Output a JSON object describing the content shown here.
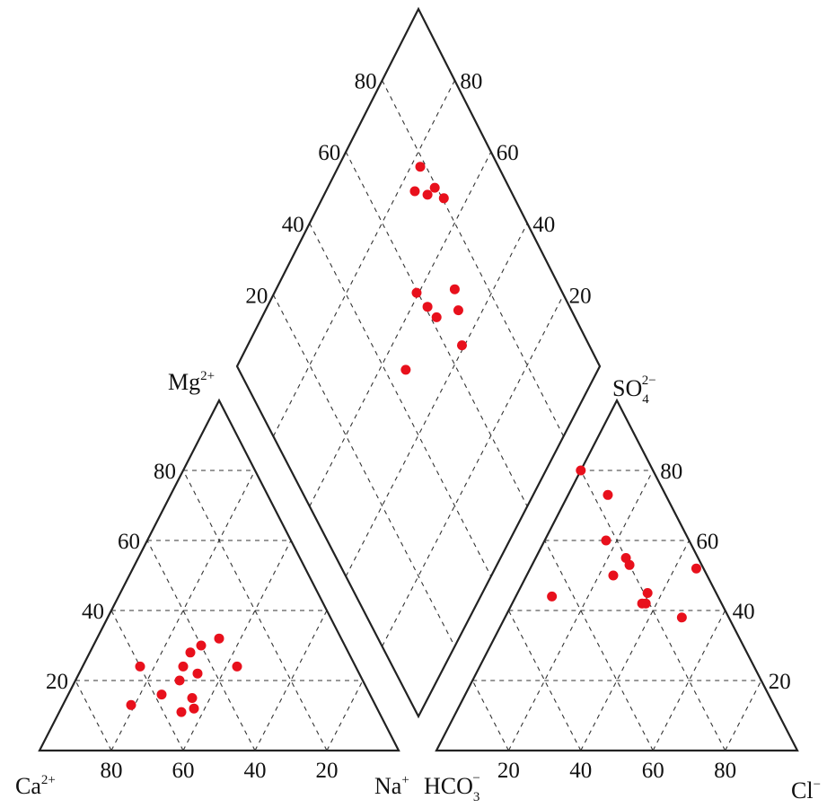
{
  "chart_data": {
    "type": "scatter",
    "subtype": "piper-trilinear-diagram",
    "title": "",
    "axis_labels": {
      "cation_ca": "Ca",
      "cation_ca_charge": "2+",
      "cation_mg": "Mg",
      "cation_mg_charge": "2+",
      "cation_na": "Na",
      "cation_na_charge": "+",
      "anion_hco3": "HCO",
      "anion_hco3_sub": "3",
      "anion_hco3_charge": "−",
      "anion_so4": "SO",
      "anion_so4_sub": "4",
      "anion_so4_charge": "2−",
      "anion_cl": "Cl",
      "anion_cl_charge": "−"
    },
    "ticks": {
      "values": [
        20,
        40,
        60,
        80
      ],
      "labels": [
        "20",
        "40",
        "60",
        "80"
      ]
    },
    "grid": true,
    "marker_color": "#e8101c",
    "line_color": "#222222",
    "cation_samples_pct": [
      {
        "ca": 33,
        "mg": 24,
        "na": 43
      },
      {
        "ca": 60,
        "mg": 24,
        "na": 16
      },
      {
        "ca": 48,
        "mg": 24,
        "na": 28
      },
      {
        "ca": 34,
        "mg": 32,
        "na": 34
      },
      {
        "ca": 45,
        "mg": 22,
        "na": 33
      },
      {
        "ca": 44,
        "mg": 28,
        "na": 28
      },
      {
        "ca": 40,
        "mg": 30,
        "na": 30
      },
      {
        "ca": 51,
        "mg": 20,
        "na": 29
      },
      {
        "ca": 50,
        "mg": 15,
        "na": 35
      },
      {
        "ca": 51,
        "mg": 12,
        "na": 37
      },
      {
        "ca": 55,
        "mg": 11,
        "na": 34
      },
      {
        "ca": 58,
        "mg": 16,
        "na": 26
      },
      {
        "ca": 68,
        "mg": 13,
        "na": 19
      }
    ],
    "anion_samples_pct": [
      {
        "hco3": 20,
        "so4": 80,
        "cl": 0
      },
      {
        "hco3": 16,
        "so4": 73,
        "cl": 11
      },
      {
        "hco3": 23,
        "so4": 60,
        "cl": 17
      },
      {
        "hco3": 20,
        "so4": 53,
        "cl": 27
      },
      {
        "hco3": 20,
        "so4": 55,
        "cl": 25
      },
      {
        "hco3": 2,
        "so4": 52,
        "cl": 46
      },
      {
        "hco3": 26,
        "so4": 50,
        "cl": 24
      },
      {
        "hco3": 19,
        "so4": 45,
        "cl": 36
      },
      {
        "hco3": 22,
        "so4": 42,
        "cl": 36
      },
      {
        "hco3": 21,
        "so4": 42,
        "cl": 37
      },
      {
        "hco3": 13,
        "so4": 38,
        "cl": 49
      },
      {
        "hco3": 46,
        "so4": 44,
        "cl": 10
      }
    ],
    "diamond_samples": [
      {
        "mg_side": 78,
        "so4_side": 79
      },
      {
        "mg_side": 76,
        "so4_side": 74
      },
      {
        "mg_side": 72,
        "so4_side": 77
      },
      {
        "mg_side": 71,
        "so4_side": 80
      },
      {
        "mg_side": 67,
        "so4_side": 81
      },
      {
        "mg_side": 61,
        "so4_side": 60
      },
      {
        "mg_side": 56,
        "so4_side": 61
      },
      {
        "mg_side": 52,
        "so4_side": 62
      },
      {
        "mg_side": 51,
        "so4_side": 71
      },
      {
        "mg_side": 47,
        "so4_side": 69
      },
      {
        "mg_side": 41,
        "so4_side": 65
      },
      {
        "mg_side": 53,
        "so4_side": 46
      }
    ]
  }
}
